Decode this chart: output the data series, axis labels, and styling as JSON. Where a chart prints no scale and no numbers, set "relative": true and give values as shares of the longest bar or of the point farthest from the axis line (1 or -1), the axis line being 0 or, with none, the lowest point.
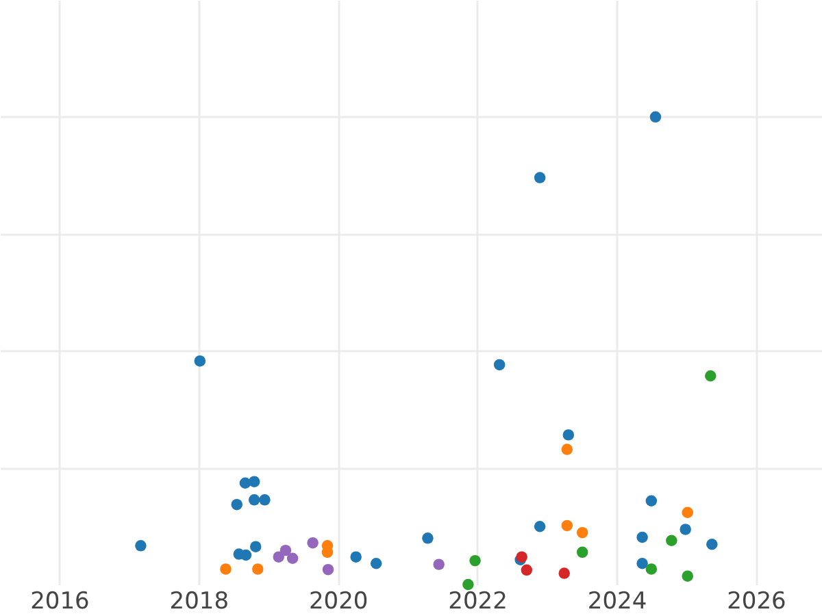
{
  "chart_data": {
    "type": "scatter",
    "relative": true,
    "grid": true,
    "marker": "circle",
    "xlim": [
      2015.15,
      2026.95
    ],
    "xticks": [
      2016,
      2018,
      2020,
      2022,
      2024,
      2026
    ],
    "series": [
      {
        "color": "#1f77b4",
        "x": [
          2017.17,
          2018.02,
          2024.56,
          2022.9,
          2022.32,
          2023.31,
          2018.67,
          2018.8,
          2018.55,
          2018.8,
          2018.95,
          2018.82,
          2018.58,
          2018.68,
          2020.26,
          2020.55,
          2021.29,
          2022.9,
          2022.62,
          2024.5,
          2024.37,
          2024.99,
          2025.37,
          2024.37
        ],
        "values": [
          0.083,
          0.478,
          1.0,
          0.87,
          0.47,
          0.32,
          0.217,
          0.22,
          0.171,
          0.181,
          0.181,
          0.081,
          0.065,
          0.063,
          0.059,
          0.045,
          0.099,
          0.124,
          0.053,
          0.179,
          0.101,
          0.118,
          0.086,
          0.045
        ]
      },
      {
        "color": "#ff7f0e",
        "x": [
          2018.39,
          2018.85,
          2019.85,
          2019.85,
          2023.29,
          2023.29,
          2023.51,
          2025.02
        ],
        "values": [
          0.033,
          0.033,
          0.083,
          0.069,
          0.289,
          0.126,
          0.111,
          0.154
        ]
      },
      {
        "color": "#9467bd",
        "x": [
          2019.15,
          2019.25,
          2019.35,
          2019.64,
          2019.86,
          2021.45
        ],
        "values": [
          0.059,
          0.073,
          0.056,
          0.089,
          0.032,
          0.043
        ]
      },
      {
        "color": "#2ca02c",
        "x": [
          2021.87,
          2021.97,
          2023.51,
          2024.5,
          2024.79,
          2025.02,
          2025.35
        ],
        "values": [
          0,
          0.051,
          0.069,
          0.033,
          0.094,
          0.018,
          0.446
        ]
      },
      {
        "color": "#d62728",
        "x": [
          2022.64,
          2022.71,
          2023.25
        ],
        "values": [
          0.059,
          0.031,
          0.024
        ]
      }
    ]
  }
}
